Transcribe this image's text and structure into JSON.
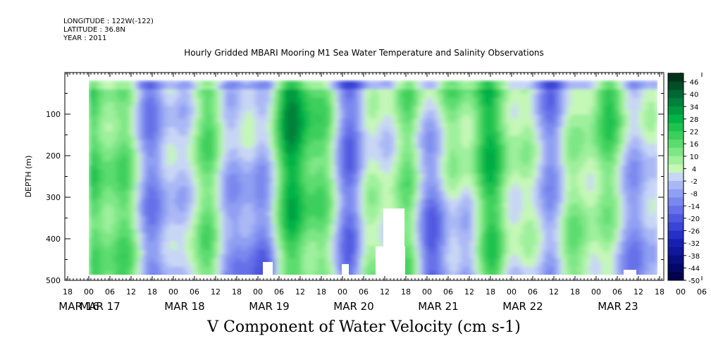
{
  "header": {
    "longitude": "LONGITUDE : 122W(-122)",
    "latitude": "LATITUDE : 36.8N",
    "year": "YEAR : 2011",
    "title": "Hourly Gridded MBARI Mooring M1 Sea Water Temperature and Salinity Observations"
  },
  "chart_data": {
    "type": "heatmap",
    "title": "Hourly Gridded MBARI Mooring M1 Sea Water Temperature and Salinity Observations",
    "xlabel": "V Component of Water Velocity (cm s-1)",
    "ylabel": "DEPTH (m)",
    "ylim": [
      500,
      0
    ],
    "y_ticks": [
      100,
      200,
      300,
      400,
      500
    ],
    "y_tick_labels": [
      "100",
      "200",
      "300",
      "400",
      "500"
    ],
    "x_hour_labels": [
      "18",
      "00",
      "06",
      "12",
      "18",
      "00",
      "06",
      "12",
      "18",
      "00",
      "06",
      "12",
      "18",
      "00",
      "06",
      "12",
      "18",
      "00",
      "06",
      "12",
      "18",
      "00",
      "06",
      "12",
      "18",
      "00",
      "06",
      "12",
      "18",
      "00",
      "06",
      "12"
    ],
    "x_day_labels": [
      "MAR 16",
      "MAR 17",
      "MAR 18",
      "MAR 19",
      "MAR 20",
      "MAR 21",
      "MAR 22",
      "MAR 23"
    ],
    "data_depth_range": [
      20,
      490
    ],
    "colorbar": {
      "labels": [
        "46",
        "40",
        "34",
        "28",
        "22",
        "16",
        "10",
        "4",
        "-2",
        "-8",
        "-14",
        "-20",
        "-26",
        "-32",
        "-38",
        "-44",
        "-50"
      ],
      "colors": [
        "#00331a",
        "#004d26",
        "#006633",
        "#00803a",
        "#009940",
        "#00b347",
        "#1fc14f",
        "#3ccf5c",
        "#5cdc6e",
        "#7de685",
        "#9ef09c",
        "#c5f7b7",
        "#c8d6f5",
        "#aab8f5",
        "#8f9ff2",
        "#7a88ee",
        "#6670e8",
        "#4f59e0",
        "#3a44d6",
        "#2630c8",
        "#1820b2",
        "#10179a",
        "#0a0f80",
        "#050866",
        "#02034c"
      ]
    }
  }
}
